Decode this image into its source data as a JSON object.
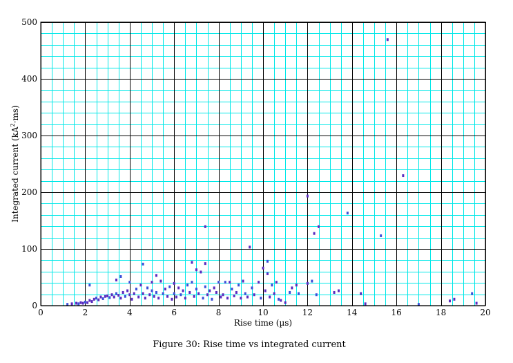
{
  "chart_data": {
    "type": "scatter",
    "title": "",
    "caption": "Figure 30: Rise time vs integrated current",
    "xlabel": "Rise time (µs)",
    "ylabel_main": "Integrated current (kA",
    "ylabel_sup": "2",
    "ylabel_tail": "·ms)",
    "xlim": [
      0,
      20
    ],
    "ylim": [
      0,
      500
    ],
    "x_ticks": [
      0,
      2,
      4,
      6,
      8,
      10,
      12,
      14,
      16,
      18,
      20
    ],
    "y_ticks": [
      0,
      100,
      200,
      300,
      400,
      500
    ],
    "x_minor_step": 0.5,
    "y_minor_step": 20,
    "grid": true,
    "colors": {
      "minor_grid": "#00e8e8",
      "major_grid": "#000000",
      "point": "#5a2bbf",
      "point_alt": "#3b4fd8"
    },
    "series": [
      {
        "points": [
          [
            1.2,
            1
          ],
          [
            1.4,
            2
          ],
          [
            1.6,
            3
          ],
          [
            1.7,
            2
          ],
          [
            1.8,
            4
          ],
          [
            1.9,
            3
          ],
          [
            2.0,
            5
          ],
          [
            2.1,
            4
          ],
          [
            2.2,
            8
          ],
          [
            2.2,
            35
          ],
          [
            2.3,
            6
          ],
          [
            2.4,
            10
          ],
          [
            2.5,
            12
          ],
          [
            2.6,
            9
          ],
          [
            2.7,
            14
          ],
          [
            2.8,
            11
          ],
          [
            2.9,
            15
          ],
          [
            3.0,
            16
          ],
          [
            3.1,
            13
          ],
          [
            3.2,
            18
          ],
          [
            3.3,
            14
          ],
          [
            3.4,
            20
          ],
          [
            3.4,
            44
          ],
          [
            3.5,
            17
          ],
          [
            3.6,
            50
          ],
          [
            3.6,
            12
          ],
          [
            3.7,
            22
          ],
          [
            3.8,
            15
          ],
          [
            3.9,
            25
          ],
          [
            4.0,
            18
          ],
          [
            4.0,
            40
          ],
          [
            4.1,
            10
          ],
          [
            4.2,
            20
          ],
          [
            4.3,
            28
          ],
          [
            4.4,
            14
          ],
          [
            4.5,
            35
          ],
          [
            4.6,
            72
          ],
          [
            4.6,
            20
          ],
          [
            4.7,
            12
          ],
          [
            4.8,
            30
          ],
          [
            4.9,
            18
          ],
          [
            5.0,
            40
          ],
          [
            5.0,
            25
          ],
          [
            5.1,
            15
          ],
          [
            5.2,
            52
          ],
          [
            5.2,
            22
          ],
          [
            5.3,
            12
          ],
          [
            5.4,
            42
          ],
          [
            5.5,
            20
          ],
          [
            5.6,
            28
          ],
          [
            5.7,
            15
          ],
          [
            5.8,
            32
          ],
          [
            5.9,
            10
          ],
          [
            6.0,
            38
          ],
          [
            6.0,
            20
          ],
          [
            6.1,
            14
          ],
          [
            6.2,
            30
          ],
          [
            6.3,
            18
          ],
          [
            6.4,
            25
          ],
          [
            6.5,
            12
          ],
          [
            6.6,
            35
          ],
          [
            6.7,
            22
          ],
          [
            6.8,
            75
          ],
          [
            6.8,
            40
          ],
          [
            6.9,
            15
          ],
          [
            7.0,
            62
          ],
          [
            7.0,
            28
          ],
          [
            7.1,
            20
          ],
          [
            7.2,
            58
          ],
          [
            7.3,
            12
          ],
          [
            7.4,
            138
          ],
          [
            7.4,
            73
          ],
          [
            7.4,
            32
          ],
          [
            7.5,
            18
          ],
          [
            7.6,
            25
          ],
          [
            7.7,
            10
          ],
          [
            7.8,
            30
          ],
          [
            7.9,
            22
          ],
          [
            8.0,
            40
          ],
          [
            8.1,
            14
          ],
          [
            8.2,
            18
          ],
          [
            8.3,
            40
          ],
          [
            8.4,
            12
          ],
          [
            8.5,
            40
          ],
          [
            8.6,
            28
          ],
          [
            8.7,
            16
          ],
          [
            8.8,
            22
          ],
          [
            8.9,
            35
          ],
          [
            9.0,
            12
          ],
          [
            9.1,
            42
          ],
          [
            9.2,
            20
          ],
          [
            9.3,
            14
          ],
          [
            9.4,
            102
          ],
          [
            9.5,
            30
          ],
          [
            9.6,
            18
          ],
          [
            9.8,
            40
          ],
          [
            9.9,
            12
          ],
          [
            10.0,
            65
          ],
          [
            10.1,
            25
          ],
          [
            10.2,
            77
          ],
          [
            10.2,
            55
          ],
          [
            10.3,
            14
          ],
          [
            10.4,
            35
          ],
          [
            10.5,
            20
          ],
          [
            10.6,
            40
          ],
          [
            10.7,
            10
          ],
          [
            10.8,
            8
          ],
          [
            11.0,
            4
          ],
          [
            11.2,
            22
          ],
          [
            11.3,
            30
          ],
          [
            11.5,
            35
          ],
          [
            11.6,
            20
          ],
          [
            12.0,
            192
          ],
          [
            12.0,
            38
          ],
          [
            12.2,
            42
          ],
          [
            12.3,
            126
          ],
          [
            12.5,
            138
          ],
          [
            12.4,
            18
          ],
          [
            13.2,
            22
          ],
          [
            13.4,
            25
          ],
          [
            13.8,
            162
          ],
          [
            14.4,
            20
          ],
          [
            14.6,
            2
          ],
          [
            15.3,
            122
          ],
          [
            15.6,
            468
          ],
          [
            16.3,
            228
          ],
          [
            17.0,
            1
          ],
          [
            18.4,
            7
          ],
          [
            18.6,
            10
          ],
          [
            19.4,
            20
          ],
          [
            19.6,
            3
          ]
        ]
      }
    ]
  }
}
